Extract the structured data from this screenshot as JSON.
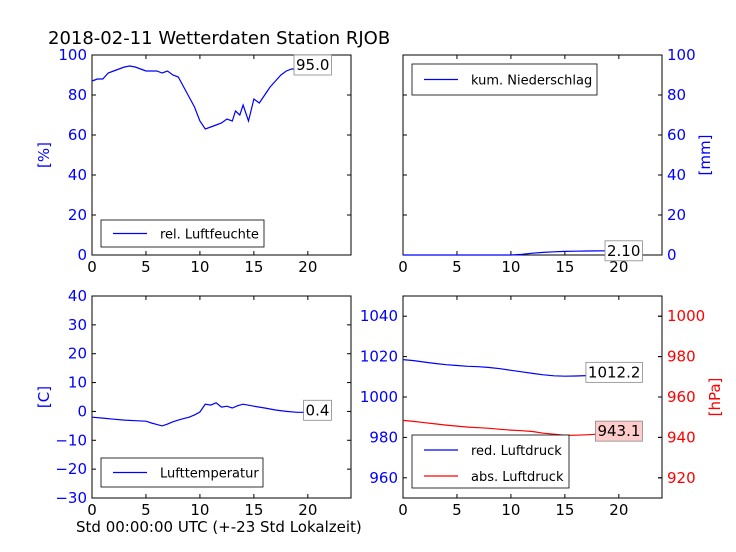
{
  "figure": {
    "title": "2018-02-11 Wetterdaten Station RJOB",
    "xlabel": "Std 00:00:00 UTC (+-23 Std Lokalzeit)"
  },
  "colors": {
    "blue": "#0000ff",
    "red": "#ff0000",
    "axis": "#000000",
    "annot_bg": "#ffcccc"
  },
  "chart_data": [
    {
      "id": "humidity",
      "type": "line",
      "ylabel": "[%]",
      "xlim": [
        0,
        24
      ],
      "ylim": [
        0,
        100
      ],
      "xticks": [
        0,
        5,
        10,
        15,
        20
      ],
      "yticks": [
        0,
        20,
        40,
        60,
        80,
        100
      ],
      "yaxis_side": "left",
      "legend_loc": "lower-left",
      "series": [
        {
          "name": "rel. Luftfeuchte",
          "color": "#0000ff",
          "x": [
            0,
            0.5,
            1,
            1.5,
            2,
            2.5,
            3,
            3.5,
            4,
            4.5,
            5,
            5.5,
            6,
            6.5,
            7,
            7.5,
            8,
            8.5,
            9,
            9.5,
            10,
            10.5,
            11,
            11.5,
            12,
            12.5,
            13,
            13.3,
            13.7,
            14,
            14.5,
            15,
            15.5,
            16,
            16.5,
            17,
            17.5,
            18,
            18.5,
            19,
            19.5,
            20,
            20.5,
            21,
            21.5,
            22
          ],
          "y": [
            87,
            88,
            88,
            91,
            92,
            93,
            94,
            94.5,
            94,
            93,
            92,
            92,
            92,
            91,
            92,
            90,
            89,
            84,
            79,
            74,
            67,
            63,
            64,
            65,
            66,
            68,
            67,
            72,
            70,
            75,
            67,
            78,
            76,
            80,
            84,
            87,
            90,
            92,
            93,
            93,
            94,
            94.5,
            95,
            95,
            95,
            95
          ]
        }
      ],
      "annotation": {
        "text": "95.0",
        "x": 22,
        "y": 95
      }
    },
    {
      "id": "precipitation",
      "type": "line",
      "ylabel": "[mm]",
      "xlim": [
        0,
        24
      ],
      "ylim": [
        0,
        100
      ],
      "xticks": [
        0,
        5,
        10,
        15,
        20
      ],
      "yticks": [
        0,
        20,
        40,
        60,
        80,
        100
      ],
      "yaxis_side": "right",
      "legend_loc": "upper-left",
      "series": [
        {
          "name": "kum. Niederschlag",
          "color": "#0000ff",
          "x": [
            0,
            10,
            11,
            12,
            13,
            14,
            15,
            16,
            17,
            18,
            19,
            20,
            21,
            22
          ],
          "y": [
            0,
            0,
            0.3,
            0.9,
            1.3,
            1.6,
            1.8,
            1.9,
            2.0,
            2.05,
            2.1,
            2.1,
            2.1,
            2.1
          ]
        }
      ],
      "annotation": {
        "text": "2.10",
        "x": 22,
        "y": 2.1
      }
    },
    {
      "id": "temperature",
      "type": "line",
      "ylabel": "[C]",
      "xlim": [
        0,
        24
      ],
      "ylim": [
        -30,
        40
      ],
      "xticks": [
        0,
        5,
        10,
        15,
        20
      ],
      "yticks": [
        -30,
        -20,
        -10,
        0,
        10,
        20,
        30,
        40
      ],
      "yaxis_side": "left",
      "legend_loc": "lower-left",
      "series": [
        {
          "name": "Lufttemperatur",
          "color": "#0000ff",
          "x": [
            0,
            1,
            2,
            3,
            4,
            5,
            5.5,
            6,
            6.5,
            7,
            7.5,
            8,
            8.5,
            9,
            9.5,
            10,
            10.5,
            11,
            11.5,
            12,
            12.5,
            13,
            13.5,
            14,
            15,
            16,
            17,
            18,
            19,
            20,
            21,
            22
          ],
          "y": [
            -2,
            -2.3,
            -2.7,
            -3,
            -3.2,
            -3.4,
            -4,
            -4.5,
            -5,
            -4.4,
            -3.6,
            -3,
            -2.5,
            -2,
            -1.2,
            -0.2,
            2.5,
            2.2,
            3,
            1.5,
            1.8,
            1.2,
            2,
            2.5,
            1.8,
            1.2,
            0.5,
            0,
            -0.3,
            -0.3,
            0.1,
            0.4
          ]
        }
      ],
      "annotation": {
        "text": "0.4",
        "x": 22,
        "y": 0.4
      }
    },
    {
      "id": "pressure",
      "type": "line",
      "ylabel_right": "[hPa]",
      "xlim": [
        0,
        24
      ],
      "ylim": [
        950,
        1050
      ],
      "ylim_right": [
        910,
        1010
      ],
      "xticks": [
        0,
        5,
        10,
        15,
        20
      ],
      "yticks": [
        960,
        980,
        1000,
        1020,
        1040
      ],
      "yticks_right": [
        920,
        940,
        960,
        980,
        1000
      ],
      "legend_loc": "lower-left",
      "series": [
        {
          "name": "red. Luftdruck",
          "color": "#0000ff",
          "axis": "left",
          "x": [
            0,
            1,
            2,
            3,
            4,
            5,
            6,
            7,
            8,
            9,
            10,
            11,
            12,
            13,
            14,
            15,
            16,
            17,
            18,
            19,
            20,
            21,
            22
          ],
          "y": [
            1018.5,
            1018,
            1017.3,
            1016.6,
            1016,
            1015.6,
            1015.2,
            1015,
            1014.6,
            1014,
            1013.2,
            1012.5,
            1011.7,
            1011,
            1010.5,
            1010.3,
            1010.4,
            1010.6,
            1010.8,
            1011.2,
            1011.6,
            1011.9,
            1012.2
          ]
        },
        {
          "name": "abs. Luftdruck",
          "color": "#ff0000",
          "axis": "right",
          "x": [
            0,
            1,
            2,
            3,
            4,
            5,
            6,
            7,
            8,
            9,
            10,
            11,
            12,
            13,
            14,
            15,
            16,
            17,
            18,
            19,
            20,
            21,
            22
          ],
          "y": [
            948.4,
            947.9,
            947.3,
            946.7,
            946.1,
            945.6,
            945.1,
            944.8,
            944.5,
            944.0,
            943.6,
            943.3,
            942.9,
            942.1,
            941.6,
            941.0,
            941.1,
            941.3,
            941.6,
            942.1,
            942.6,
            943.0,
            943.1
          ]
        }
      ],
      "annotations": [
        {
          "text": "1012.2",
          "x": 22,
          "y": 1012.2,
          "axis": "left"
        },
        {
          "text": "943.1",
          "x": 22,
          "y": 943.1,
          "axis": "right",
          "highlight": true
        }
      ]
    }
  ]
}
